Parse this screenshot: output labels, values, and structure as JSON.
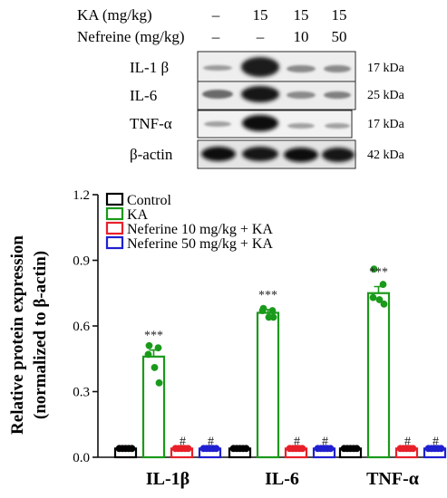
{
  "western_blot": {
    "header_rows": [
      {
        "label": "KA (mg/kg)",
        "values": [
          "–",
          "15",
          "15",
          "15"
        ]
      },
      {
        "label": "Nefreine (mg/kg)",
        "values": [
          "–",
          "–",
          "10",
          "50"
        ]
      }
    ],
    "bands": [
      {
        "name": "IL-1 β",
        "size": "17 kDa"
      },
      {
        "name": "IL-6",
        "size": "25 kDa"
      },
      {
        "name": "TNF-α",
        "size": "17 kDa"
      },
      {
        "name": "β-actin",
        "size": "42 kDa"
      }
    ]
  },
  "chart_data": {
    "type": "bar",
    "ylabel": "Relative protein expression",
    "ylabel2": "(normalized to β-actin)",
    "ylim": [
      0,
      1.2
    ],
    "yticks": [
      "0.0",
      "0.3",
      "0.6",
      "0.9",
      "1.2"
    ],
    "categories": [
      "IL-1β",
      "IL-6",
      "TNF-α"
    ],
    "legend_position": "top-left",
    "series": [
      {
        "name": "Control",
        "color": "#000000",
        "values": [
          0.04,
          0.04,
          0.04
        ],
        "errors": [
          0.003,
          0.003,
          0.003
        ],
        "points": [
          [
            0.04,
            0.04,
            0.04,
            0.04,
            0.04
          ],
          [
            0.04,
            0.04,
            0.04,
            0.04,
            0.04
          ],
          [
            0.04,
            0.04,
            0.04,
            0.04,
            0.04
          ]
        ],
        "annotation": [
          "",
          "",
          ""
        ]
      },
      {
        "name": "KA",
        "color": "#1a9a1a",
        "values": [
          0.46,
          0.66,
          0.75
        ],
        "errors": [
          0.03,
          0.015,
          0.03
        ],
        "points": [
          [
            0.51,
            0.5,
            0.47,
            0.41,
            0.34
          ],
          [
            0.68,
            0.67,
            0.67,
            0.64,
            0.64
          ],
          [
            0.86,
            0.79,
            0.73,
            0.72,
            0.7
          ]
        ],
        "annotation": [
          "***",
          "***",
          "***"
        ]
      },
      {
        "name": "Neferine 10 mg/kg + KA",
        "color": "#e8202a",
        "values": [
          0.04,
          0.04,
          0.04
        ],
        "errors": [
          0.003,
          0.003,
          0.003
        ],
        "points": [
          [
            0.04,
            0.04,
            0.04,
            0.04,
            0.04
          ],
          [
            0.04,
            0.04,
            0.04,
            0.04,
            0.04
          ],
          [
            0.04,
            0.04,
            0.04,
            0.04,
            0.04
          ]
        ],
        "annotation": [
          "#",
          "#",
          "#"
        ]
      },
      {
        "name": "Neferine 50 mg/kg + KA",
        "color": "#2020d0",
        "values": [
          0.04,
          0.04,
          0.04
        ],
        "errors": [
          0.003,
          0.003,
          0.003
        ],
        "points": [
          [
            0.04,
            0.04,
            0.04,
            0.04,
            0.04
          ],
          [
            0.04,
            0.04,
            0.04,
            0.04,
            0.04
          ],
          [
            0.04,
            0.04,
            0.04,
            0.04,
            0.04
          ]
        ],
        "annotation": [
          "#",
          "#",
          "#"
        ]
      }
    ]
  }
}
